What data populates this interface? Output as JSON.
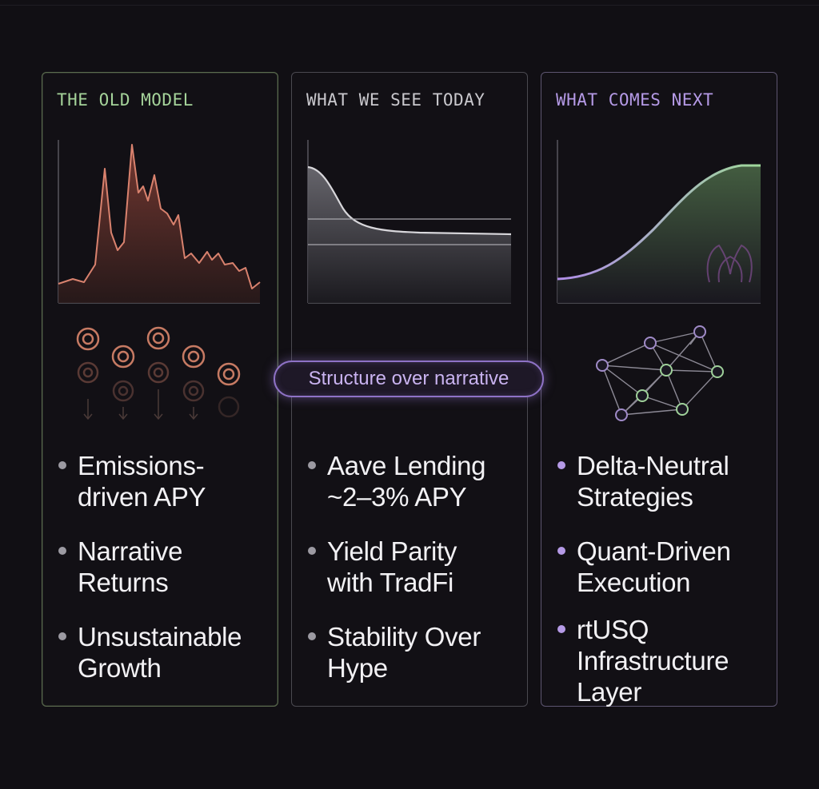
{
  "colors": {
    "background": "#110f14",
    "old_model_accent": "#a5d39a",
    "today_accent": "#c9c8cd",
    "next_accent": "#b59ae6",
    "spike_color": "#d9826e",
    "pill_border": "#8e72c6"
  },
  "panels": [
    {
      "title": "THE OLD MODEL",
      "bullets": [
        "Emissions-driven APY",
        "Narrative Returns",
        "Unsustainable Growth"
      ],
      "icon": "target-circles-icon"
    },
    {
      "title": "WHAT WE SEE TODAY",
      "bullets": [
        "Aave Lending ~2–3% APY",
        "Yield Parity with TradFi",
        "Stability Over Hype"
      ]
    },
    {
      "title": "WHAT COMES NEXT",
      "bullets": [
        "Delta-Neutral Strategies",
        "Quant-Driven Execution",
        "rtUSQ Infrastructure Layer"
      ],
      "icon": "network-graph-icon",
      "watermark": "brand-logo-icon"
    }
  ],
  "center_pill": "Structure over narrative"
}
